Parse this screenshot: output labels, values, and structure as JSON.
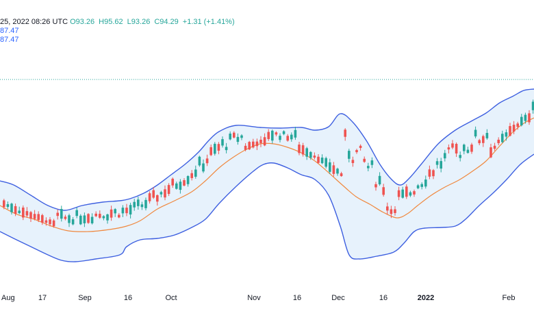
{
  "header": {
    "time": "25, 2022 08:26 UTC",
    "open": "93.26",
    "high": "95.62",
    "low": "93.26",
    "close": "94.29",
    "change": "+1.31 (+1.41%)",
    "indicator_line_1": "87.47",
    "indicator_line_2": "87.47"
  },
  "colors": {
    "up": "#26a69a",
    "down": "#ef5350",
    "band": "#3d5fe0",
    "basis": "#f0883e",
    "band_fill": "#e3f0fb",
    "price_line": "#26a69a"
  },
  "chart_data": {
    "type": "candlestick",
    "x_tick_labels": [
      "Aug",
      "17",
      "Sep",
      "16",
      "Oct",
      "Nov",
      "16",
      "Dec",
      "16",
      "2022",
      "Feb"
    ],
    "indicator": "bollinger_bands",
    "last_close": 94.29
  }
}
